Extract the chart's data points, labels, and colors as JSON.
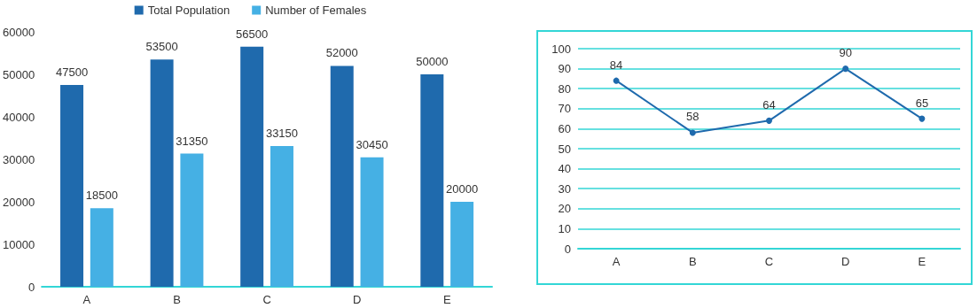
{
  "chart_data": [
    {
      "type": "bar",
      "categories": [
        "A",
        "B",
        "C",
        "D",
        "E"
      ],
      "series": [
        {
          "name": "Total Population",
          "color": "#1f6aad",
          "values": [
            47500,
            53500,
            56500,
            52000,
            50000
          ]
        },
        {
          "name": "Number of Females",
          "color": "#45b0e4",
          "values": [
            18500,
            31350,
            33150,
            30450,
            20000
          ]
        }
      ],
      "ylim": [
        0,
        60000
      ],
      "yticks": [
        0,
        10000,
        20000,
        30000,
        40000,
        50000,
        60000
      ],
      "grid": false,
      "legend": "top",
      "data_labels": true
    },
    {
      "type": "line",
      "categories": [
        "A",
        "B",
        "C",
        "D",
        "E"
      ],
      "series": [
        {
          "color": "#1f6aad",
          "values": [
            84,
            58,
            64,
            90,
            65
          ]
        }
      ],
      "ylim": [
        0,
        100
      ],
      "yticks": [
        0,
        10,
        20,
        30,
        40,
        50,
        60,
        70,
        80,
        90,
        100
      ],
      "grid": "y",
      "marker": "circle",
      "line_style": "solid",
      "data_labels": true
    }
  ]
}
